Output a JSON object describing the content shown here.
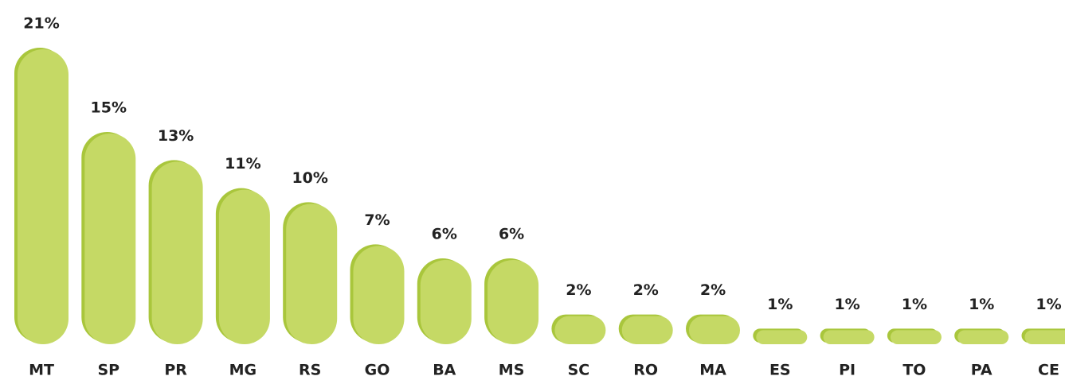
{
  "chart_data": {
    "type": "bar",
    "categories": [
      "MT",
      "SP",
      "PR",
      "MG",
      "RS",
      "GO",
      "BA",
      "MS",
      "SC",
      "RO",
      "MA",
      "ES",
      "PI",
      "TO",
      "PA",
      "CE"
    ],
    "values": [
      21,
      15,
      13,
      11,
      10,
      7,
      6,
      6,
      2,
      2,
      2,
      1,
      1,
      1,
      1,
      1
    ],
    "value_labels": [
      "21%",
      "15%",
      "13%",
      "11%",
      "10%",
      "7%",
      "6%",
      "6%",
      "2%",
      "2%",
      "2%",
      "1%",
      "1%",
      "1%",
      "1%",
      "1%"
    ],
    "color": "#c5d965",
    "shadow_color": "#a9c63c"
  }
}
